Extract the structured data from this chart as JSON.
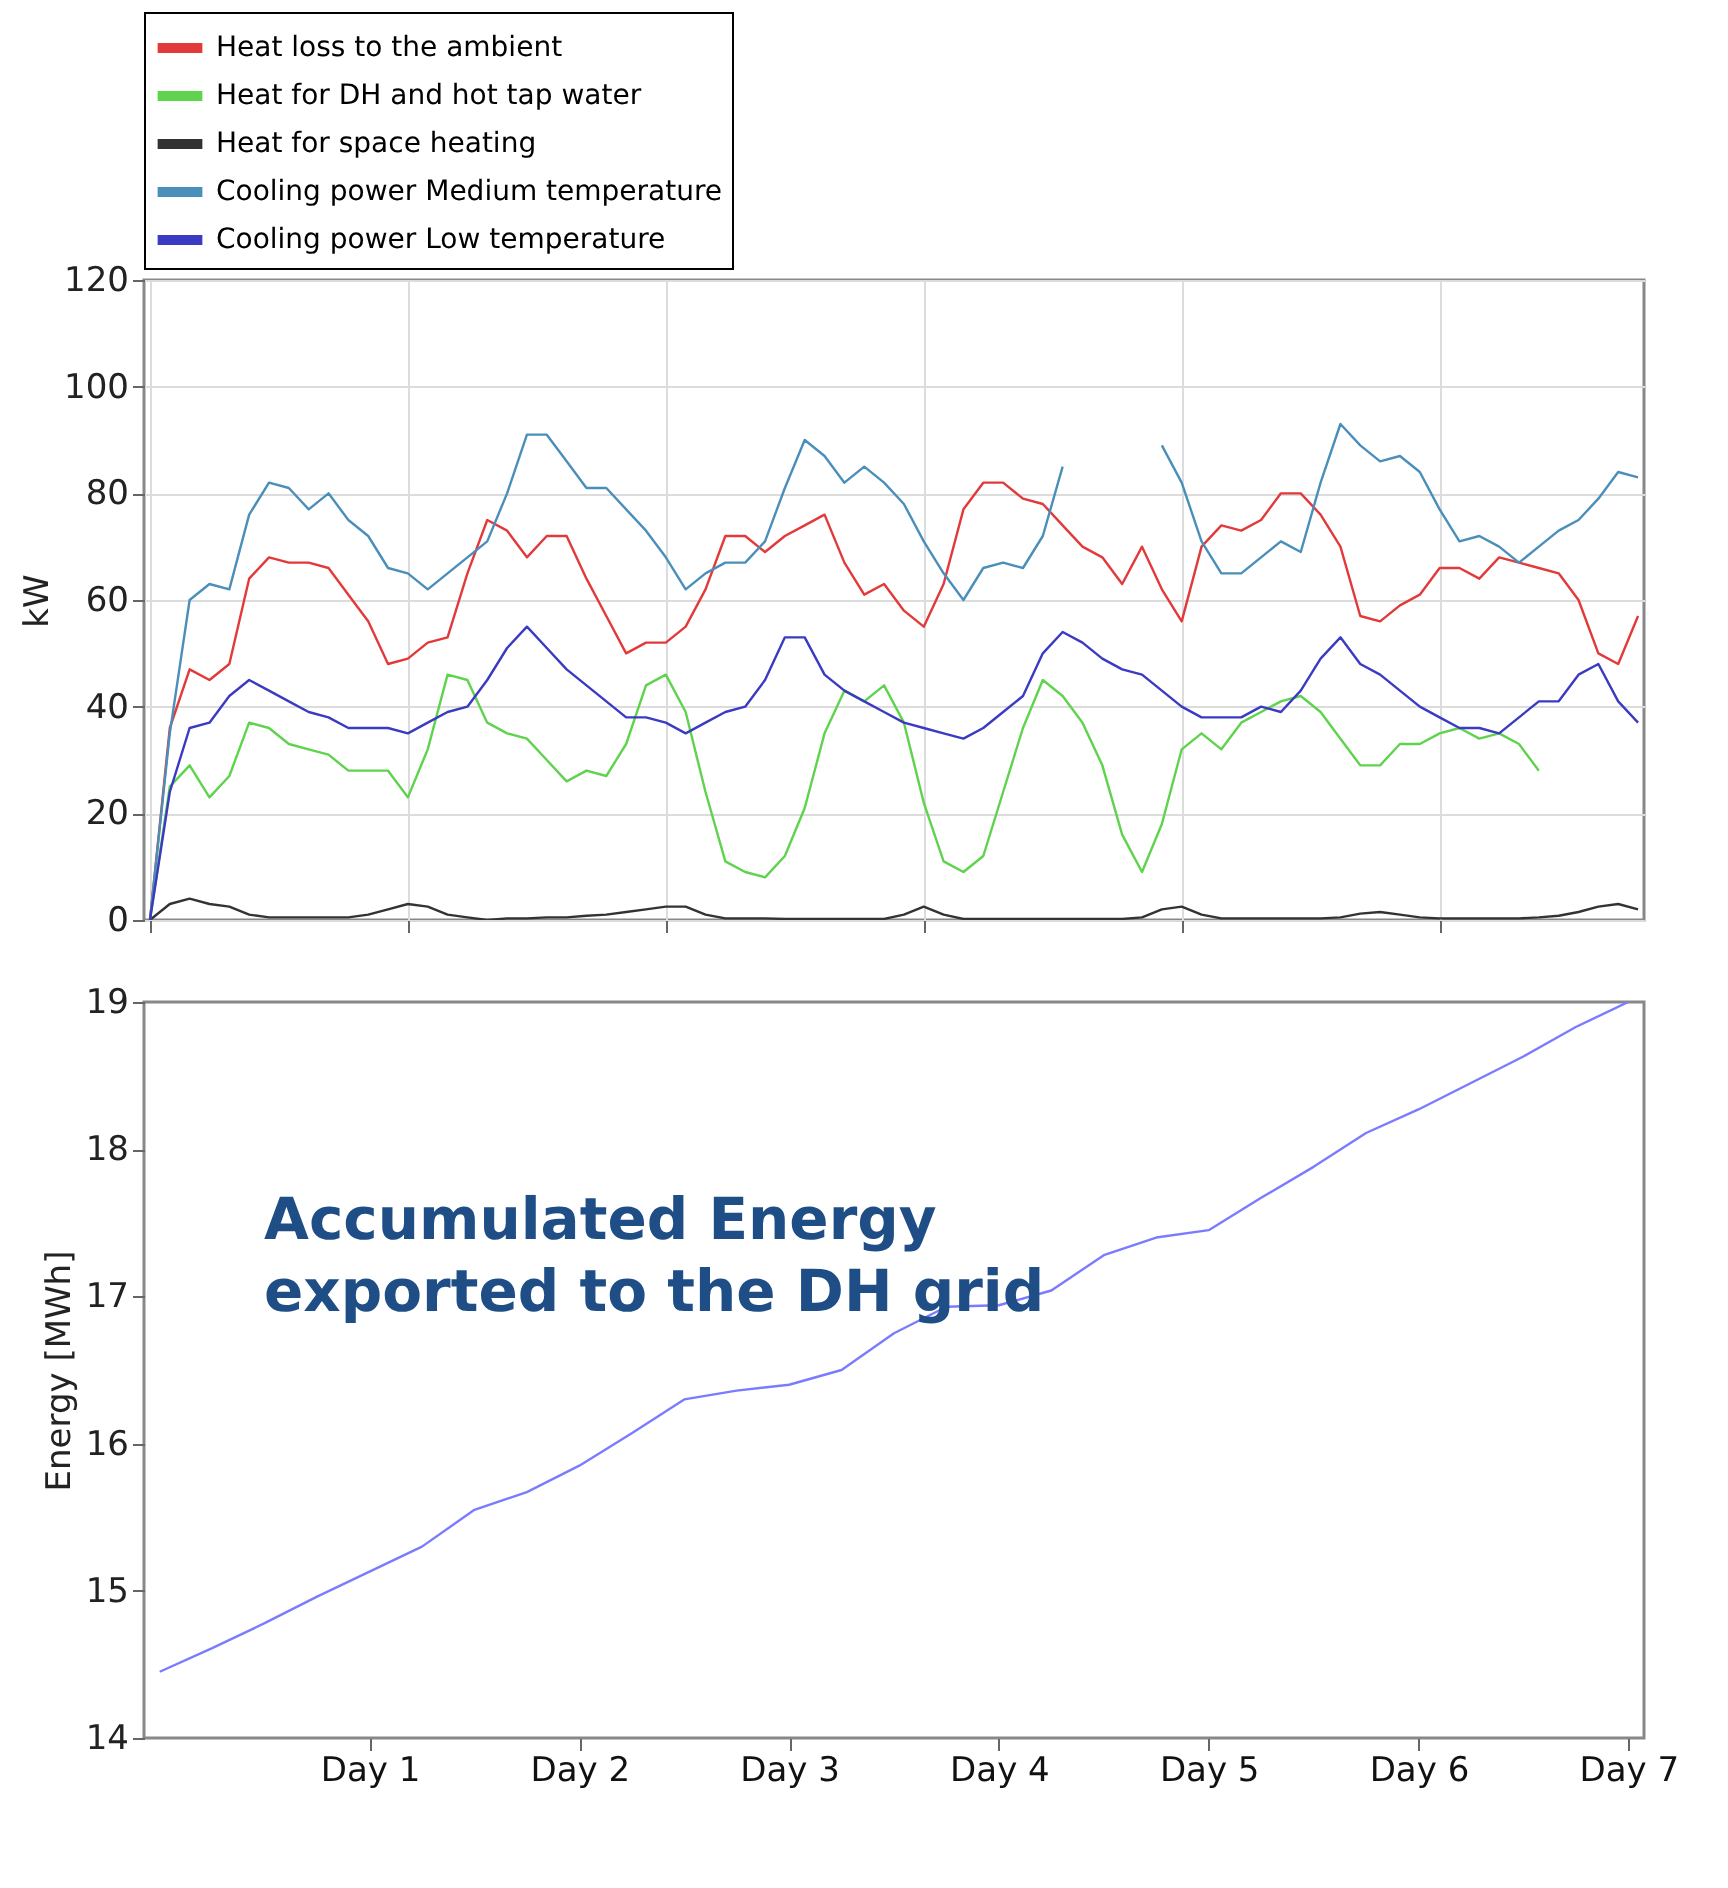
{
  "chart_data": [
    {
      "type": "line",
      "ylabel": "kW",
      "ylim": [
        0,
        120
      ],
      "yticks": [
        0,
        20,
        40,
        60,
        80,
        100,
        120
      ],
      "grid": true,
      "legend": "top",
      "tick_labels": "y",
      "categories": [
        null,
        null,
        null,
        null,
        null,
        null,
        null,
        null,
        null,
        null,
        null,
        null,
        null,
        null,
        null,
        null,
        null,
        null,
        null,
        null,
        null,
        null,
        null,
        null,
        null,
        null,
        null,
        null,
        null,
        null,
        null,
        null,
        null,
        null,
        null,
        null,
        null,
        null,
        null,
        null,
        null,
        null,
        null,
        null,
        null,
        null,
        null,
        null,
        null,
        null,
        null,
        null,
        null,
        null,
        null,
        null,
        null,
        null,
        null,
        null,
        null,
        null,
        null,
        null,
        null,
        null,
        null,
        null,
        null,
        null,
        null,
        null,
        null,
        null,
        null,
        null
      ],
      "series": [
        {
          "name": "Heat loss to the ambient",
          "color": "#e2393a",
          "values": [
            0,
            36,
            47,
            45,
            48,
            64,
            68,
            67,
            67,
            66,
            61,
            56,
            48,
            49,
            52,
            53,
            65,
            75,
            73,
            68,
            72,
            72,
            64,
            57,
            50,
            52,
            52,
            55,
            62,
            72,
            72,
            69,
            72,
            74,
            76,
            67,
            61,
            63,
            58,
            55,
            63,
            77,
            82,
            82,
            79,
            78,
            74,
            70,
            68,
            63,
            70,
            62,
            56,
            70,
            74,
            73,
            75,
            80,
            80,
            76,
            70,
            57,
            56,
            59,
            61,
            66,
            66,
            64,
            68,
            67,
            66,
            65,
            60,
            50,
            48,
            57
          ]
        },
        {
          "name": "Heat for DH and hot tap water",
          "color": "#5fd34d",
          "values": [
            0,
            25,
            29,
            23,
            27,
            37,
            36,
            33,
            32,
            31,
            28,
            28,
            28,
            23,
            32,
            46,
            45,
            37,
            35,
            34,
            30,
            26,
            28,
            27,
            33,
            44,
            46,
            39,
            24,
            11,
            9,
            8,
            12,
            21,
            35,
            43,
            41,
            44,
            37,
            22,
            11,
            9,
            12,
            24,
            36,
            45,
            42,
            37,
            29,
            16,
            9,
            18,
            32,
            35,
            32,
            37,
            39,
            41,
            42,
            39,
            34,
            29,
            29,
            33,
            33,
            35,
            36,
            34,
            35,
            33,
            28,
            null,
            null,
            null,
            null,
            null
          ]
        },
        {
          "name": "Heat for space heating",
          "color": "#333333",
          "values": [
            0,
            3,
            4,
            3,
            2.5,
            1,
            0.5,
            0.5,
            0.5,
            0.5,
            0.5,
            1,
            2,
            3,
            2.5,
            1,
            0.5,
            0,
            0.3,
            0.3,
            0.5,
            0.5,
            0.8,
            1,
            1.5,
            2,
            2.5,
            2.5,
            1,
            0.3,
            0.3,
            0.3,
            0.2,
            0.2,
            0.2,
            0.2,
            0.2,
            0.2,
            1,
            2.5,
            1,
            0.2,
            0.2,
            0.2,
            0.2,
            0.2,
            0.2,
            0.2,
            0.2,
            0.2,
            0.5,
            2,
            2.5,
            1,
            0.3,
            0.3,
            0.3,
            0.3,
            0.3,
            0.3,
            0.5,
            1.2,
            1.5,
            1,
            0.5,
            0.3,
            0.3,
            0.3,
            0.3,
            0.3,
            0.5,
            0.8,
            1.5,
            2.5,
            3,
            2
          ]
        },
        {
          "name": "Cooling power Medium temperature",
          "color": "#4a8fba",
          "values": [
            0,
            35,
            60,
            63,
            62,
            76,
            82,
            81,
            77,
            80,
            75,
            72,
            66,
            65,
            62,
            65,
            68,
            71,
            80,
            91,
            91,
            86,
            81,
            81,
            77,
            73,
            68,
            62,
            65,
            67,
            67,
            71,
            81,
            90,
            87,
            82,
            85,
            82,
            78,
            71,
            65,
            60,
            66,
            67,
            66,
            72,
            85,
            null,
            null,
            null,
            null,
            89,
            82,
            71,
            65,
            65,
            68,
            71,
            69,
            82,
            93,
            89,
            86,
            87,
            84,
            77,
            71,
            72,
            70,
            67,
            70,
            73,
            75,
            79,
            84,
            83
          ]
        },
        {
          "name": "Cooling power Low temperature",
          "color": "#3b3ac2",
          "values": [
            0,
            24,
            36,
            37,
            42,
            45,
            43,
            41,
            39,
            38,
            36,
            36,
            36,
            35,
            37,
            39,
            40,
            45,
            51,
            55,
            51,
            47,
            44,
            41,
            38,
            38,
            37,
            35,
            37,
            39,
            40,
            45,
            53,
            53,
            46,
            43,
            41,
            39,
            37,
            36,
            35,
            34,
            36,
            39,
            42,
            50,
            54,
            52,
            49,
            47,
            46,
            43,
            40,
            38,
            38,
            38,
            40,
            39,
            43,
            49,
            53,
            48,
            46,
            43,
            40,
            38,
            36,
            36,
            35,
            38,
            41,
            41,
            46,
            48,
            41,
            37
          ]
        }
      ]
    },
    {
      "type": "line",
      "ylabel": "Energy [MWh]",
      "color": "#7b7bff",
      "annotations": [
        "Accumulated Energy\nexported to the DH grid"
      ],
      "categories": [
        null,
        null,
        null,
        null,
        "Day 1",
        null,
        null,
        null,
        "Day 2",
        null,
        null,
        null,
        "Day 3",
        null,
        null,
        null,
        "Day 4",
        null,
        null,
        null,
        "Day 5",
        null,
        null,
        null,
        "Day 6",
        null,
        null,
        null,
        "Day 7"
      ],
      "ylim": [
        14,
        19
      ],
      "yticks": [
        14,
        15,
        16,
        17,
        18,
        19
      ],
      "values": [
        14.45,
        14.61,
        14.78,
        14.96,
        15.13,
        15.3,
        15.55,
        15.67,
        15.85,
        16.07,
        16.3,
        16.36,
        16.4,
        16.5,
        16.75,
        16.93,
        16.94,
        17.04,
        17.28,
        17.4,
        17.45,
        17.67,
        17.88,
        18.11,
        18.27,
        18.45,
        18.63,
        18.83,
        19.0
      ]
    }
  ]
}
